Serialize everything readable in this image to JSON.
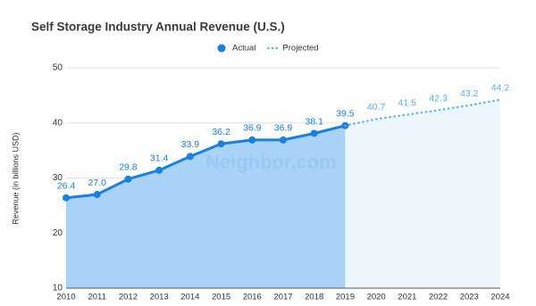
{
  "chart_data": {
    "type": "line",
    "title": "Self Storage Industry Annual Revenue (U.S.)",
    "y_label": "Revenue (in billions USD)",
    "watermark": "Neighbor.com",
    "categories": [
      "2010",
      "2011",
      "2012",
      "2013",
      "2014",
      "2015",
      "2016",
      "2017",
      "2018",
      "2019",
      "2020",
      "2021",
      "2022",
      "2023",
      "2024"
    ],
    "series": [
      {
        "name": "Actual",
        "color": "#1a7fe0",
        "fill": "#a8d3f6",
        "style": "solid",
        "values": [
          26.4,
          27.0,
          29.8,
          31.4,
          33.9,
          36.2,
          36.9,
          36.9,
          38.1,
          39.5,
          null,
          null,
          null,
          null,
          null
        ],
        "value_labels": [
          "26.4",
          "27.0",
          "29.8",
          "31.4",
          "33.9",
          "36.2",
          "36.9",
          "36.9",
          "38.1",
          "39.5",
          null,
          null,
          null,
          null,
          null
        ]
      },
      {
        "name": "Projected",
        "color": "#5ab0ef",
        "fill": "#eef6fd",
        "style": "dotted",
        "values": [
          null,
          null,
          null,
          null,
          null,
          null,
          null,
          null,
          null,
          39.5,
          40.7,
          41.5,
          42.3,
          43.2,
          44.2
        ]
      }
    ],
    "ylim": [
      10,
      50
    ],
    "yticks": [
      10,
      20,
      30,
      40,
      50
    ],
    "grid": true,
    "legend": "top"
  }
}
